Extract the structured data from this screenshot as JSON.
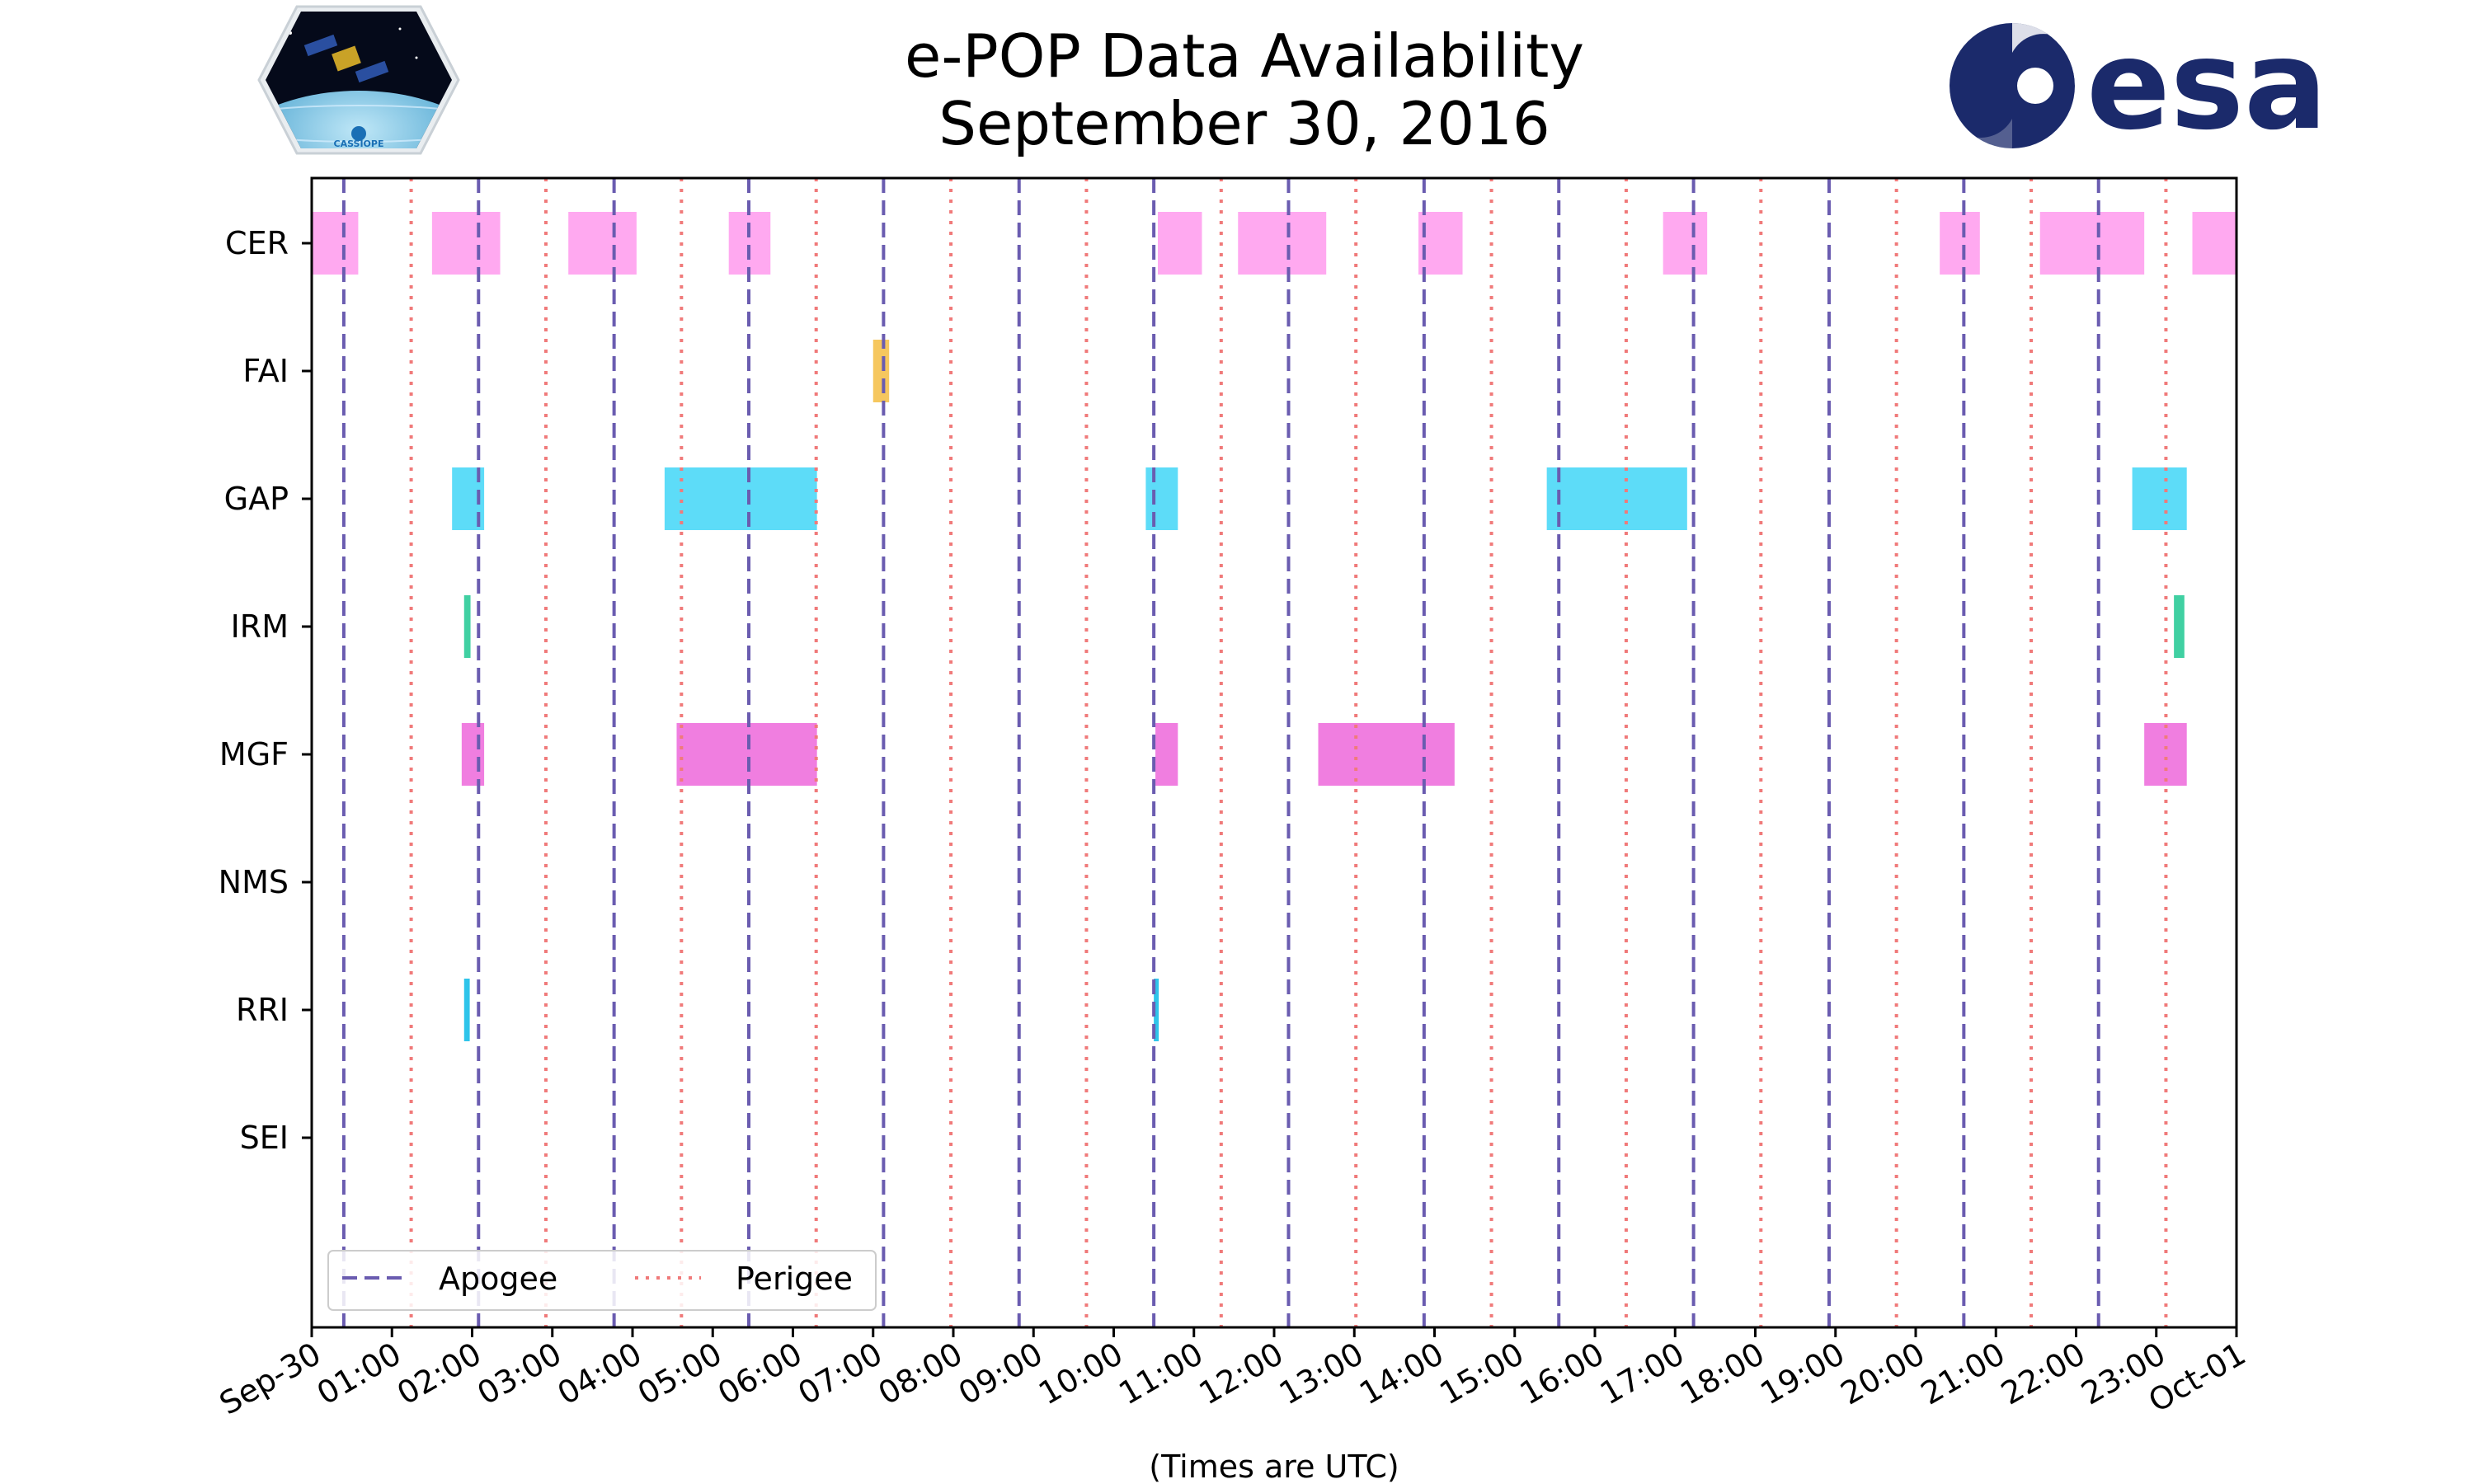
{
  "chart_data": {
    "type": "timeline",
    "title": [
      "e-POP Data Availability",
      "September 30, 2016"
    ],
    "xlabel": "(Times are UTC)",
    "xlim_hours": [
      0,
      24
    ],
    "x_tick_labels": [
      "Sep-30",
      "01:00",
      "02:00",
      "03:00",
      "04:00",
      "05:00",
      "06:00",
      "07:00",
      "08:00",
      "09:00",
      "10:00",
      "11:00",
      "12:00",
      "13:00",
      "14:00",
      "15:00",
      "16:00",
      "17:00",
      "18:00",
      "19:00",
      "20:00",
      "21:00",
      "22:00",
      "23:00",
      "Oct-01"
    ],
    "instruments": [
      "CER",
      "FAI",
      "GAP",
      "IRM",
      "MGF",
      "NMS",
      "RRI",
      "SEI"
    ],
    "intervals": {
      "CER": [
        [
          0.0,
          0.58
        ],
        [
          1.5,
          2.35
        ],
        [
          3.2,
          4.05
        ],
        [
          5.2,
          5.72
        ],
        [
          10.55,
          11.1
        ],
        [
          11.55,
          12.65
        ],
        [
          13.8,
          14.35
        ],
        [
          16.85,
          17.4
        ],
        [
          20.3,
          20.8
        ],
        [
          21.55,
          22.85
        ],
        [
          23.45,
          24.0
        ]
      ],
      "FAI": [
        [
          7.0,
          7.2
        ]
      ],
      "GAP": [
        [
          1.75,
          2.15
        ],
        [
          4.4,
          6.3
        ],
        [
          10.4,
          10.8
        ],
        [
          15.4,
          17.15
        ],
        [
          22.7,
          23.38
        ]
      ],
      "IRM": [
        [
          1.9,
          1.98
        ],
        [
          23.22,
          23.35
        ]
      ],
      "MGF": [
        [
          1.87,
          2.15
        ],
        [
          4.55,
          6.3
        ],
        [
          10.52,
          10.8
        ],
        [
          12.55,
          14.25
        ],
        [
          22.85,
          23.38
        ]
      ],
      "NMS": [],
      "RRI": [
        [
          1.9,
          1.97
        ],
        [
          10.5,
          10.56
        ]
      ],
      "SEI": []
    },
    "colors": {
      "CER": "#ffa9f0",
      "FAI": "#f6c75e",
      "GAP": "#5ddcf8",
      "IRM": "#40d0a2",
      "MGF": "#f07ee0",
      "NMS": "#888888",
      "RRI": "#2ec4ea",
      "SEI": "#888888"
    },
    "apogee_hours": [
      0.4,
      2.08,
      3.77,
      5.45,
      7.13,
      8.82,
      10.5,
      12.18,
      13.87,
      15.55,
      17.23,
      18.92,
      20.6,
      22.28
    ],
    "perigee_hours": [
      1.24,
      2.92,
      4.61,
      6.29,
      7.97,
      9.66,
      11.34,
      13.02,
      14.71,
      16.39,
      18.07,
      19.76,
      21.44,
      23.12
    ],
    "apogee_color": "#6a5cb0",
    "perigee_color": "#f07a7a",
    "legend": {
      "position": "lower-left",
      "entries": [
        "Apogee",
        "Perigee"
      ]
    }
  },
  "logos": {
    "left": "CASSIOPE",
    "right": "esa"
  }
}
